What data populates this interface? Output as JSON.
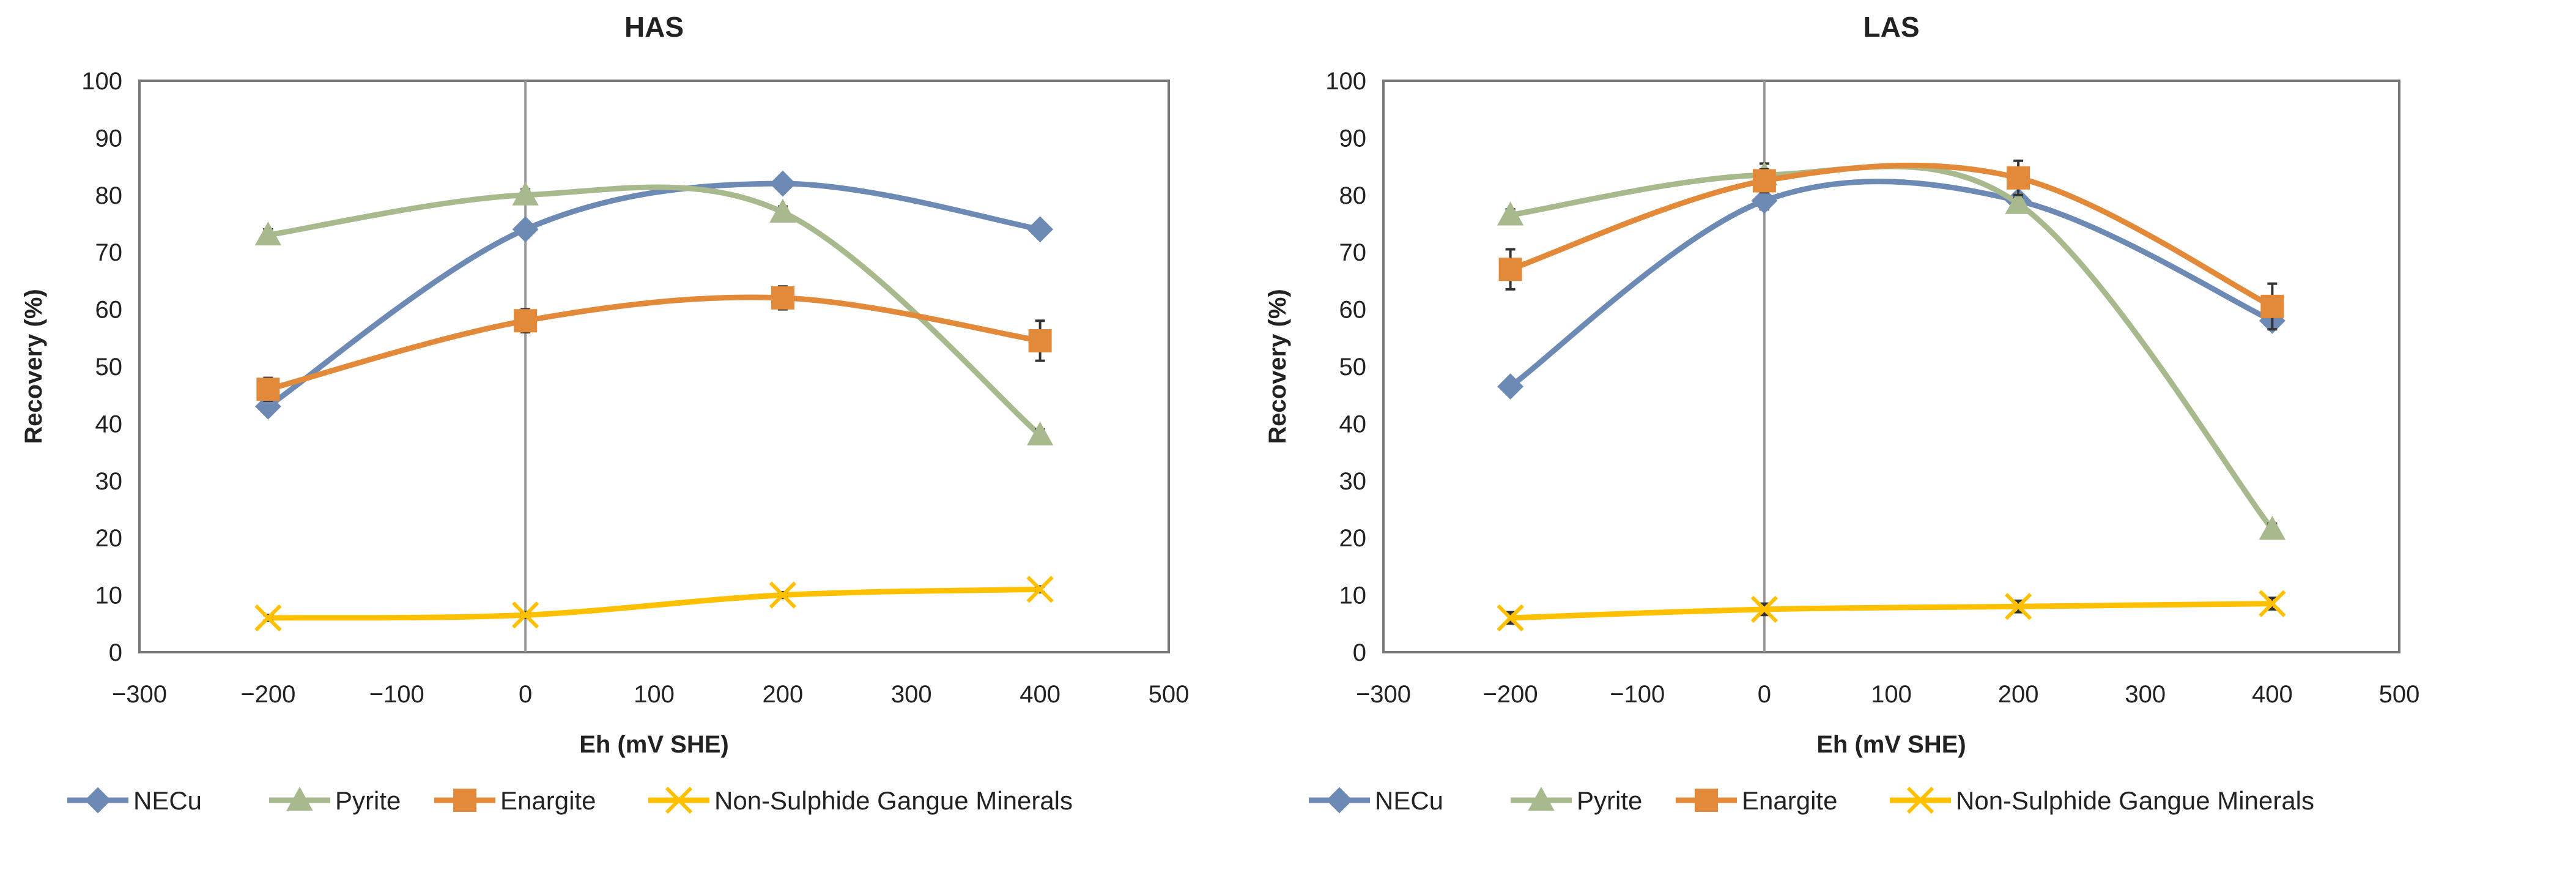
{
  "chart_data": [
    {
      "type": "line",
      "title": "HAS",
      "xlabel": "Eh (mV SHE)",
      "ylabel": "Recovery (%)",
      "xlim": [
        -300,
        500
      ],
      "ylim": [
        0,
        100
      ],
      "xticks": [
        -300,
        -200,
        -100,
        0,
        100,
        200,
        300,
        400,
        500
      ],
      "xtick_labels": [
        "−300",
        "−200",
        "−100",
        "0",
        "100",
        "200",
        "300",
        "400",
        "500"
      ],
      "yticks": [
        0,
        10,
        20,
        30,
        40,
        50,
        60,
        70,
        80,
        90,
        100
      ],
      "ytick_labels": [
        "0",
        "10",
        "20",
        "30",
        "40",
        "50",
        "60",
        "70",
        "80",
        "90",
        "100"
      ],
      "grid": false,
      "legend_position": "bottom",
      "x": [
        -200,
        0,
        200,
        400
      ],
      "series": [
        {
          "name": "NECu",
          "marker": "diamond",
          "color": "#6d8ab5",
          "values": [
            43,
            74,
            82,
            74
          ],
          "error": [
            1,
            1,
            1,
            1
          ]
        },
        {
          "name": "Pyrite",
          "marker": "triangle",
          "color": "#a9b98e",
          "values": [
            73,
            80,
            77,
            38
          ],
          "error": [
            1,
            1,
            1,
            1
          ]
        },
        {
          "name": "Enargite",
          "marker": "square",
          "color": "#e3893a",
          "values": [
            46,
            58,
            62,
            54.5
          ],
          "error": [
            2,
            2,
            2,
            3.5
          ]
        },
        {
          "name": "Non-Sulphide Gangue Minerals",
          "marker": "x",
          "color": "#ffc000",
          "values": [
            6,
            6.5,
            10,
            11
          ],
          "error": [
            0.5,
            0.5,
            0.5,
            0.5
          ]
        }
      ]
    },
    {
      "type": "line",
      "title": "LAS",
      "xlabel": "Eh (mV SHE)",
      "ylabel": "Recovery (%)",
      "xlim": [
        -300,
        500
      ],
      "ylim": [
        0,
        100
      ],
      "xticks": [
        -300,
        -200,
        -100,
        0,
        100,
        200,
        300,
        400,
        500
      ],
      "xtick_labels": [
        "−300",
        "−200",
        "−100",
        "0",
        "100",
        "200",
        "300",
        "400",
        "500"
      ],
      "yticks": [
        0,
        10,
        20,
        30,
        40,
        50,
        60,
        70,
        80,
        90,
        100
      ],
      "ytick_labels": [
        "0",
        "10",
        "20",
        "30",
        "40",
        "50",
        "60",
        "70",
        "80",
        "90",
        "100"
      ],
      "grid": false,
      "legend_position": "bottom",
      "x": [
        -200,
        0,
        200,
        400
      ],
      "series": [
        {
          "name": "NECu",
          "marker": "diamond",
          "color": "#6d8ab5",
          "values": [
            46.5,
            79,
            79,
            58
          ],
          "error": [
            1,
            1.5,
            1,
            1
          ]
        },
        {
          "name": "Pyrite",
          "marker": "triangle",
          "color": "#a9b98e",
          "values": [
            76.5,
            83.5,
            78.5,
            21.5
          ],
          "error": [
            1,
            2,
            1,
            1
          ]
        },
        {
          "name": "Enargite",
          "marker": "square",
          "color": "#e3893a",
          "values": [
            67,
            82.5,
            83,
            60.5
          ],
          "error": [
            3.5,
            2,
            3,
            4
          ]
        },
        {
          "name": "Non-Sulphide Gangue Minerals",
          "marker": "x",
          "color": "#ffc000",
          "values": [
            6,
            7.5,
            8,
            8.5
          ],
          "error": [
            1,
            1,
            1,
            1
          ]
        }
      ]
    }
  ]
}
